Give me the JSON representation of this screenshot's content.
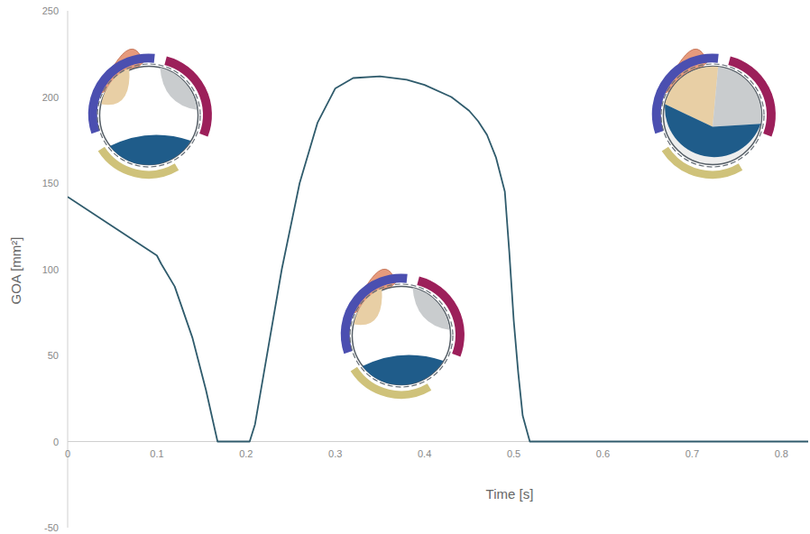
{
  "chart_data": {
    "type": "line",
    "x_label": "Time [s]",
    "y_label": "GOA [mm²]",
    "x": [
      0,
      0.05,
      0.1,
      0.105,
      0.12,
      0.14,
      0.155,
      0.168,
      0.185,
      0.204,
      0.21,
      0.22,
      0.24,
      0.26,
      0.28,
      0.3,
      0.32,
      0.35,
      0.38,
      0.4,
      0.43,
      0.45,
      0.46,
      0.47,
      0.48,
      0.49,
      0.495,
      0.5,
      0.505,
      0.51,
      0.518,
      0.6,
      0.7,
      0.8,
      0.83
    ],
    "values": [
      142,
      125,
      108,
      103,
      90,
      60,
      30,
      0,
      0,
      0,
      10,
      40,
      100,
      150,
      185,
      205,
      211,
      212,
      210,
      207,
      200,
      192,
      186,
      178,
      165,
      145,
      110,
      70,
      40,
      15,
      0,
      0,
      0,
      0,
      0
    ],
    "color": "#2f5b6c",
    "xlim": [
      0,
      0.83
    ],
    "xticks": [
      0,
      0.1,
      0.2,
      0.3,
      0.4,
      0.5,
      0.6,
      0.7,
      0.8
    ],
    "ylim": [
      -50,
      250
    ],
    "yticks": [
      -50,
      0,
      50,
      100,
      150,
      200,
      250
    ],
    "grid": false
  }
}
